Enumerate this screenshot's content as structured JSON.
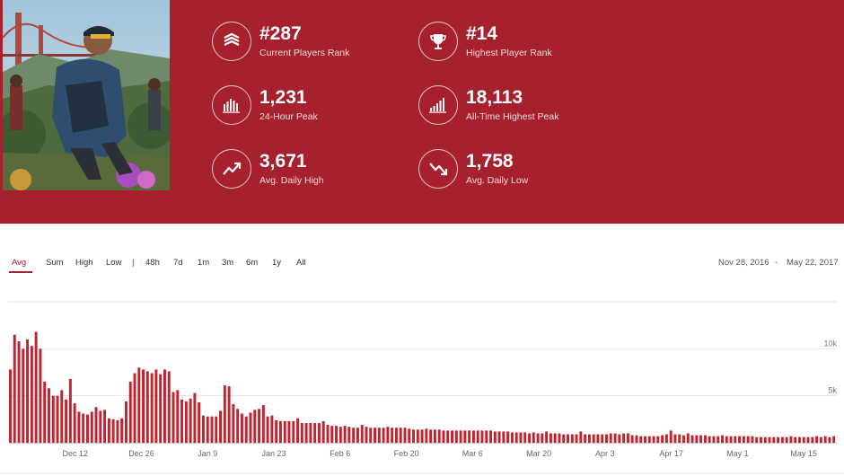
{
  "stats": [
    {
      "value": "#287",
      "label": "Current Players Rank",
      "icon": "layers-icon"
    },
    {
      "value": "#14",
      "label": "Highest Player Rank",
      "icon": "trophy-icon"
    },
    {
      "value": "1,231",
      "label": "24-Hour Peak",
      "icon": "bars-icon"
    },
    {
      "value": "18,113",
      "label": "All-Time Highest Peak",
      "icon": "ascending-bars-icon"
    },
    {
      "value": "3,671",
      "label": "Avg. Daily High",
      "icon": "trend-up-icon"
    },
    {
      "value": "1,758",
      "label": "Avg. Daily Low",
      "icon": "trend-down-icon"
    }
  ],
  "modes": [
    "Avg",
    "Sum",
    "High",
    "Low"
  ],
  "active_mode": "Avg",
  "separator": "|",
  "ranges": [
    "48h",
    "7d",
    "1m",
    "3m",
    "6m",
    "1y",
    "All"
  ],
  "date_range": {
    "start": "Nov 28, 2016",
    "dash": "-",
    "end": "May 22, 2017"
  },
  "colors": {
    "accent": "#a7202d",
    "bar": "#c1232f"
  },
  "chart_data": {
    "type": "bar",
    "x_start": "2016-11-28",
    "x_end": "2017-05-22",
    "x_ticks": [
      "Dec 12",
      "Dec 26",
      "Jan 9",
      "Jan 23",
      "Feb 6",
      "Feb 20",
      "Mar 6",
      "Mar 20",
      "Apr 3",
      "Apr 17",
      "May 1",
      "May 15"
    ],
    "y_ticks": [
      "5k",
      "10k"
    ],
    "ylim": [
      0,
      15000
    ],
    "grid": true,
    "values": [
      7800,
      11500,
      10800,
      10000,
      11000,
      10300,
      11800,
      10000,
      6500,
      5800,
      5000,
      5000,
      5600,
      4600,
      6800,
      4200,
      3300,
      3100,
      3000,
      3300,
      3800,
      3400,
      3500,
      2600,
      2500,
      2400,
      2600,
      4400,
      6500,
      7400,
      8000,
      7800,
      7600,
      7400,
      7800,
      7300,
      7800,
      7600,
      5400,
      5600,
      4600,
      4400,
      4700,
      5300,
      4300,
      2900,
      2800,
      2800,
      2800,
      3400,
      6100,
      6000,
      4100,
      3600,
      3100,
      2800,
      3200,
      3500,
      3600,
      4000,
      2800,
      2900,
      2400,
      2300,
      2300,
      2300,
      2300,
      2600,
      2100,
      2100,
      2100,
      2100,
      2100,
      2300,
      1900,
      1800,
      1800,
      1700,
      1800,
      1700,
      1600,
      1600,
      1900,
      1700,
      1600,
      1600,
      1600,
      1600,
      1700,
      1600,
      1600,
      1600,
      1600,
      1500,
      1400,
      1400,
      1400,
      1500,
      1400,
      1400,
      1400,
      1300,
      1300,
      1300,
      1300,
      1300,
      1300,
      1300,
      1300,
      1300,
      1300,
      1300,
      1300,
      1200,
      1200,
      1200,
      1200,
      1100,
      1100,
      1100,
      1100,
      1000,
      1100,
      1000,
      1000,
      1200,
      1000,
      1000,
      1000,
      900,
      900,
      900,
      900,
      1200,
      900,
      900,
      900,
      900,
      900,
      900,
      1000,
      1000,
      900,
      1000,
      1000,
      800,
      800,
      700,
      700,
      700,
      700,
      700,
      800,
      900,
      1300,
      900,
      900,
      800,
      1000,
      800,
      800,
      800,
      800,
      700,
      700,
      700,
      800,
      700,
      700,
      700,
      700,
      700,
      700,
      700,
      600,
      600,
      600,
      600,
      600,
      600,
      600,
      600,
      700,
      600,
      600,
      600,
      600,
      600,
      700,
      600,
      700,
      600,
      700
    ],
    "values_note_omitted": ""
  }
}
